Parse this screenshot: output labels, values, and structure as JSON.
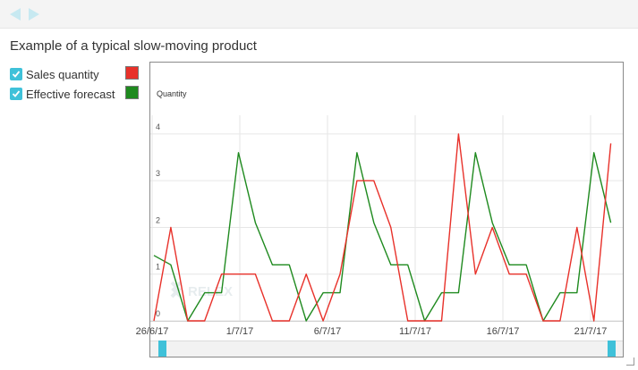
{
  "title": "Example of a typical slow-moving product",
  "legend": [
    {
      "label": "Sales quantity",
      "color": "#e8312a",
      "checked": true
    },
    {
      "label": "Effective forecast",
      "color": "#1f8a1f",
      "checked": true
    }
  ],
  "watermark": "RELEX",
  "chart_data": {
    "type": "line",
    "ylabel": "Quantity",
    "xlabel": "",
    "ylim": [
      0,
      4.4
    ],
    "yticks": [
      0,
      1,
      2,
      3,
      4
    ],
    "x_tick_labels": [
      "26/6/17",
      "1/7/17",
      "6/7/17",
      "11/7/17",
      "16/7/17",
      "21/7/17"
    ],
    "x_range_days": [
      "26/6/17",
      "22/7/17"
    ],
    "grid": true,
    "series": [
      {
        "name": "Sales quantity",
        "color": "#e8312a",
        "values": [
          0,
          2,
          0,
          0,
          1,
          1,
          1,
          0,
          0,
          1,
          0,
          1,
          3,
          3,
          2,
          0,
          0,
          0,
          4,
          1,
          2,
          1,
          1,
          0,
          0,
          2,
          0,
          3.8
        ]
      },
      {
        "name": "Effective forecast",
        "color": "#1f8a1f",
        "values": [
          1.4,
          1.2,
          0,
          0.6,
          0.6,
          3.6,
          2.1,
          1.2,
          1.2,
          0,
          0.6,
          0.6,
          3.6,
          2.1,
          1.2,
          1.2,
          0,
          0.6,
          0.6,
          3.6,
          2.1,
          1.2,
          1.2,
          0,
          0.6,
          0.6,
          3.6,
          2.1
        ]
      }
    ],
    "x_start_day_offset": 0.1,
    "x_spacing_days": 0.965
  },
  "scrollbar": {
    "handle_color": "#3fc1d9"
  }
}
